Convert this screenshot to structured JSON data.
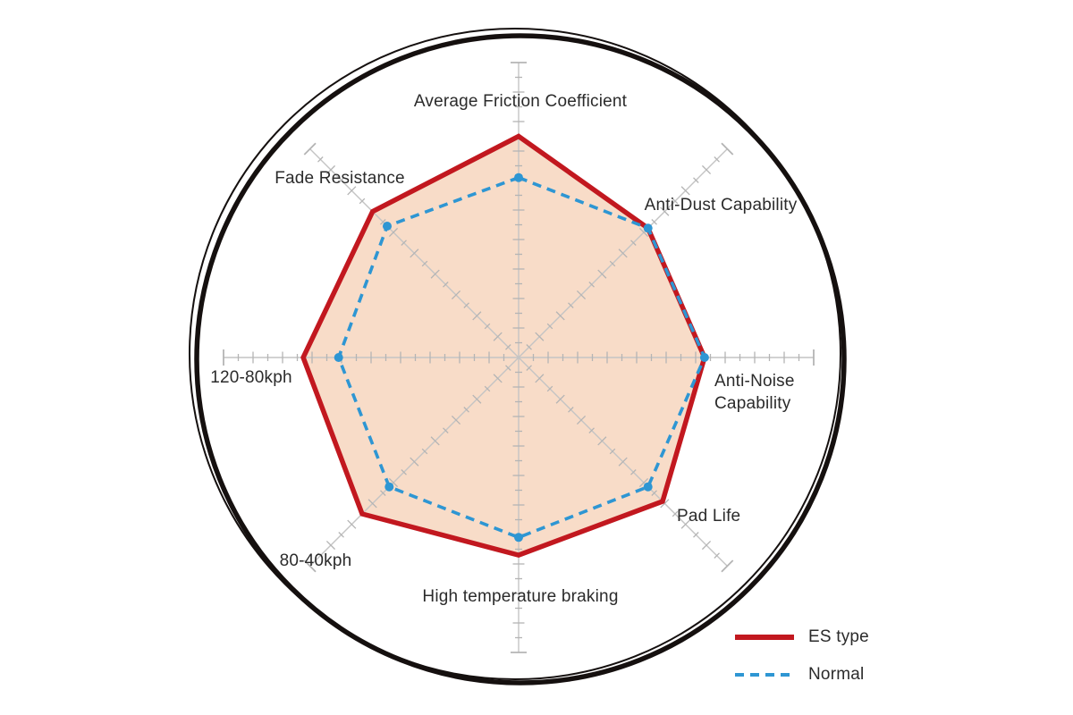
{
  "chart_data": {
    "type": "radar",
    "axes": [
      "Average Friction Coefficient",
      "Anti-Dust Capability",
      "Anti-Noise Capability",
      "Pad Life",
      "High temperature braking",
      "80-40kph",
      "120-80kph",
      "Fade Resistance"
    ],
    "scale": {
      "min": 0,
      "max": 10,
      "minor_step": 0.5,
      "major_step": 1
    },
    "series": [
      {
        "name": "ES type",
        "values": [
          7.5,
          6.2,
          6.3,
          6.9,
          6.7,
          7.5,
          7.3,
          7.0
        ],
        "color": "#c2181f",
        "fill": "#f8dcc8",
        "style": "solid"
      },
      {
        "name": "Normal",
        "values": [
          6.1,
          6.2,
          6.3,
          6.2,
          6.1,
          6.2,
          6.1,
          6.3
        ],
        "color": "#2e96d3",
        "style": "dashed",
        "markers": true
      }
    ],
    "legend_position": "bottom-right",
    "grid": "radial-tick-axes",
    "outer_ring": true,
    "outer_ring_color": "#15100f",
    "axis_color": "#c4c4c4",
    "tick_color": "#b4b4b4"
  }
}
